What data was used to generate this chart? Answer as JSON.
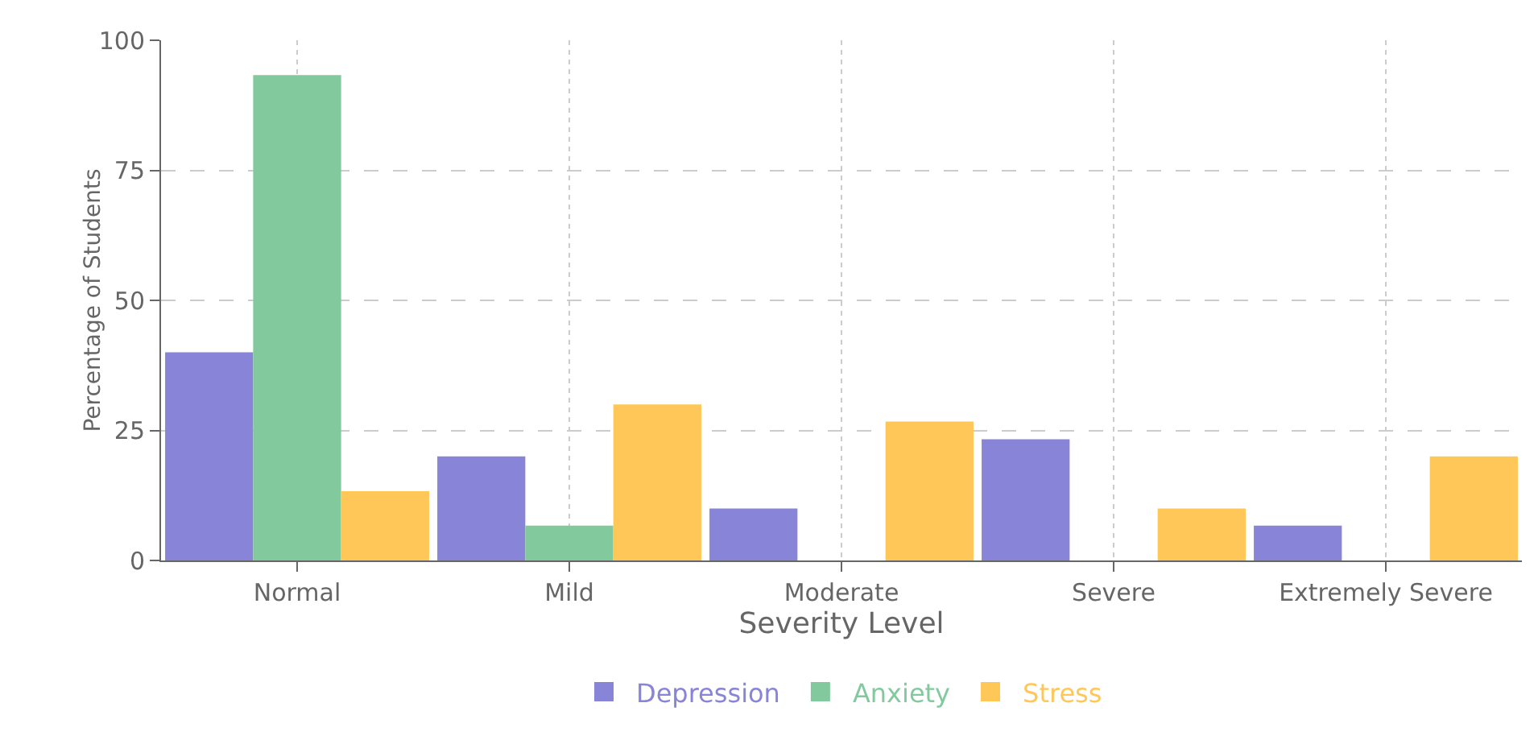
{
  "chart_data": {
    "type": "bar",
    "xlabel": "Severity Level",
    "ylabel": "Percentage of Students",
    "categories": [
      "Normal",
      "Mild",
      "Moderate",
      "Severe",
      "Extremely Severe"
    ],
    "series": [
      {
        "name": "Depression",
        "color": "#8884d8",
        "values": [
          40,
          20,
          10,
          23.3,
          6.7
        ]
      },
      {
        "name": "Anxiety",
        "color": "#82ca9d",
        "values": [
          93.3,
          6.7,
          0,
          0,
          0
        ]
      },
      {
        "name": "Stress",
        "color": "#ffc658",
        "values": [
          13.3,
          30,
          26.7,
          10,
          20
        ]
      }
    ],
    "ylim": [
      0,
      100
    ],
    "yticks": [
      0,
      25,
      50,
      75,
      100
    ],
    "grid": true,
    "legend": "bottom"
  }
}
